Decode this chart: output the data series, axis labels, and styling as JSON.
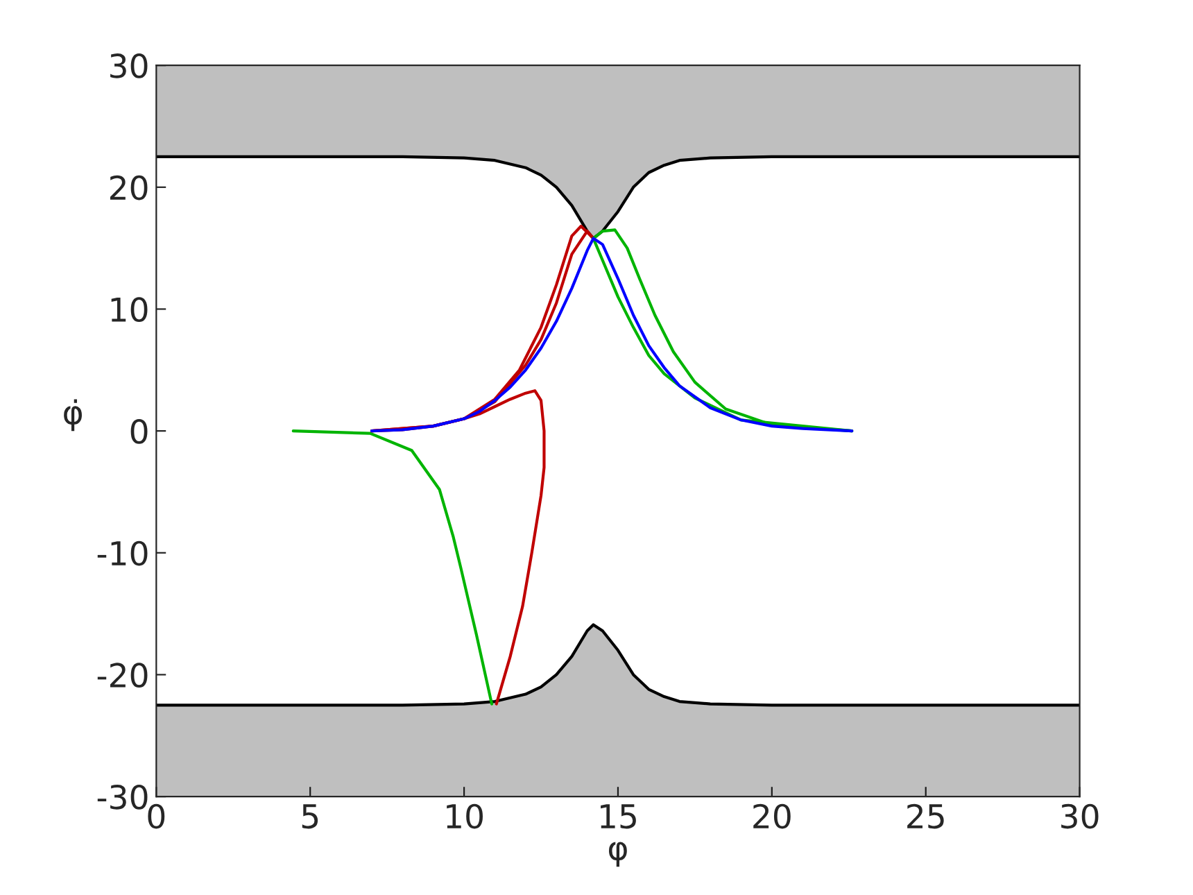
{
  "chart_data": {
    "type": "line",
    "xlabel": "φ",
    "ylabel": "φ̇",
    "xlim": [
      0,
      30
    ],
    "ylim": [
      -30,
      30
    ],
    "xticks": [
      0,
      5,
      10,
      15,
      20,
      25,
      30
    ],
    "yticks": [
      -30,
      -20,
      -10,
      0,
      10,
      20,
      30
    ],
    "grid": false,
    "series": [
      {
        "color": "#000000",
        "x": [
          0,
          8,
          10,
          11,
          12,
          12.5,
          13,
          13.5,
          14,
          14.2,
          14.5,
          15,
          15.5,
          16,
          16.5,
          17,
          18,
          20,
          30
        ],
        "values": [
          22.5,
          22.5,
          22.4,
          22.2,
          21.6,
          21,
          20,
          18.5,
          16.4,
          15.8,
          16.4,
          18,
          20,
          21.2,
          21.8,
          22.2,
          22.4,
          22.5,
          22.5
        ],
        "lower": [
          22.5,
          22.5,
          22.4,
          22.2,
          21.6,
          21,
          20,
          18.5,
          16.4,
          15.8,
          16.4,
          18,
          20,
          21.2,
          21.8,
          22.2,
          22.4,
          22.5,
          22.5
        ],
        "upper": [
          30,
          30,
          30,
          30,
          30,
          30,
          30,
          30,
          30,
          30,
          30,
          30,
          30,
          30,
          30,
          30,
          30,
          30,
          30
        ]
      },
      {
        "color": "#000000",
        "x": [
          0,
          8,
          10,
          11,
          12,
          12.5,
          13,
          13.5,
          14,
          14.2,
          14.5,
          15,
          15.5,
          16,
          16.5,
          17,
          18,
          20,
          30
        ],
        "values": [
          -22.5,
          -22.5,
          -22.4,
          -22.2,
          -21.6,
          -21,
          -20,
          -18.5,
          -16.4,
          -15.9,
          -16.4,
          -18,
          -20,
          -21.2,
          -21.8,
          -22.2,
          -22.4,
          -22.5,
          -22.5
        ],
        "lower": [
          -30,
          -30,
          -30,
          -30,
          -30,
          -30,
          -30,
          -30,
          -30,
          -30,
          -30,
          -30,
          -30,
          -30,
          -30,
          -30,
          -30,
          -30,
          -30
        ],
        "upper": [
          -22.5,
          -22.5,
          -22.4,
          -22.2,
          -21.6,
          -21,
          -20,
          -18.5,
          -16.4,
          -15.9,
          -16.4,
          -18,
          -20,
          -21.2,
          -21.8,
          -22.2,
          -22.4,
          -22.5,
          -22.5
        ]
      },
      {
        "color": "#00b400",
        "x": [
          4.45,
          6.95,
          8.3,
          9.2,
          9.65,
          9.9,
          10.4,
          10.9
        ],
        "values": [
          0,
          -0.2,
          -1.6,
          -4.8,
          -8.7,
          -11.3,
          -16.7,
          -22.4
        ]
      },
      {
        "color": "#c00000",
        "x": [
          7,
          8,
          9,
          10,
          10.5,
          11,
          11.5,
          12,
          12.3,
          12.5,
          12.6,
          12.6,
          12.5,
          12.2,
          11.9,
          11.5,
          11.05
        ],
        "values": [
          0,
          0.1,
          0.4,
          1,
          1.4,
          2,
          2.6,
          3.1,
          3.3,
          2.5,
          0,
          -3,
          -5.3,
          -10,
          -14.4,
          -18.5,
          -22.4
        ]
      },
      {
        "color": "#c00000",
        "x": [
          7,
          9,
          10,
          11,
          11.8,
          12.5,
          13,
          13.5,
          13.8,
          14.2
        ],
        "values": [
          0,
          0.4,
          1,
          2.6,
          5,
          8.5,
          12,
          16,
          16.8,
          15.8
        ]
      },
      {
        "color": "#c00000",
        "x": [
          7,
          9,
          10,
          11,
          12,
          12.5,
          13,
          13.5,
          14,
          14.2
        ],
        "values": [
          0,
          0.4,
          1,
          2.4,
          5.4,
          7.5,
          10.5,
          14.5,
          16.4,
          15.8
        ]
      },
      {
        "color": "#00b400",
        "x": [
          14.2,
          14.5,
          14.9,
          15.3,
          15.7,
          16.2,
          16.8,
          17.5,
          18.5,
          20,
          22.6
        ],
        "values": [
          15.8,
          16.4,
          16.5,
          15,
          12.5,
          9.5,
          6.5,
          4,
          1.8,
          0.5,
          0
        ]
      },
      {
        "color": "#00b400",
        "x": [
          14.2,
          14.5,
          15,
          15.5,
          16,
          16.5,
          17.5,
          19,
          22.6
        ],
        "values": [
          15.8,
          14,
          11,
          8.5,
          6.2,
          4.7,
          2.7,
          0.9,
          0
        ]
      },
      {
        "color": "#0000ff",
        "x": [
          7,
          8,
          9,
          10,
          10.5,
          11,
          11.5,
          12,
          12.5,
          13,
          13.5,
          14,
          14.2,
          14.5,
          15,
          15.5,
          16,
          16.5,
          17,
          18,
          19,
          20,
          21,
          22.6
        ],
        "values": [
          0,
          0.1,
          0.4,
          1.0,
          1.6,
          2.5,
          3.6,
          5,
          6.8,
          9,
          11.7,
          14.8,
          15.8,
          15.3,
          12.5,
          9.5,
          7,
          5.2,
          3.7,
          1.9,
          0.9,
          0.4,
          0.2,
          0
        ]
      }
    ]
  }
}
